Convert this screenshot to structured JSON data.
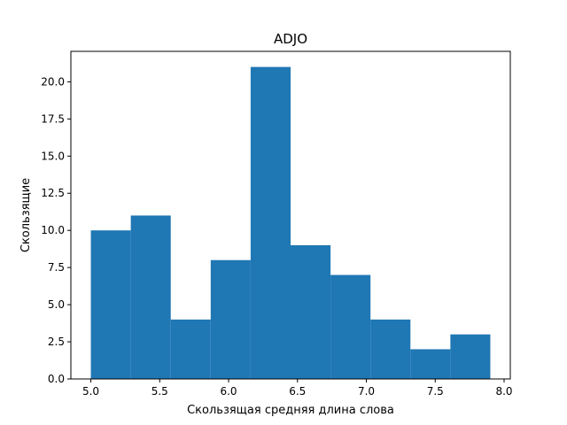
{
  "chart_data": {
    "type": "bar",
    "title": "ADJO",
    "xlabel": "Скользящая средняя длина слова",
    "ylabel": "Скользящие",
    "bin_edges": [
      5.0,
      5.29,
      5.58,
      5.87,
      6.16,
      6.45,
      6.74,
      7.03,
      7.32,
      7.61,
      7.9
    ],
    "values": [
      10,
      11,
      4,
      8,
      21,
      9,
      7,
      4,
      2,
      3
    ],
    "xlim": [
      4.855,
      8.045
    ],
    "ylim": [
      0,
      22.05
    ],
    "xticks": [
      "5.0",
      "5.5",
      "6.0",
      "6.5",
      "7.0",
      "7.5",
      "8.0"
    ],
    "yticks": [
      "0.0",
      "2.5",
      "5.0",
      "7.5",
      "10.0",
      "12.5",
      "15.0",
      "17.5",
      "20.0"
    ],
    "bar_color": "#1f77b4",
    "grid": false
  }
}
